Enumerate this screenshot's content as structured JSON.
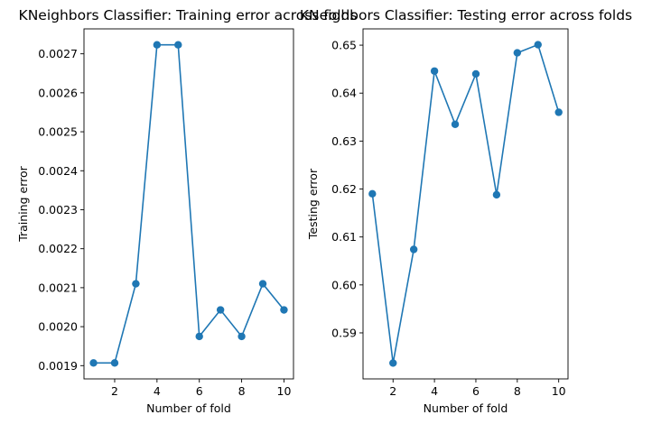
{
  "chart_data": [
    {
      "type": "line",
      "title": "KNeighbors Classifier: Training error across folds",
      "xlabel": "Number of fold",
      "ylabel": "Training error",
      "x": [
        1,
        2,
        3,
        4,
        5,
        6,
        7,
        8,
        9,
        10
      ],
      "series": [
        {
          "values": [
            0.001907,
            0.001907,
            0.00211,
            0.002723,
            0.002723,
            0.001975,
            0.002043,
            0.001975,
            0.00211,
            0.002043
          ]
        }
      ],
      "xticks": [
        2,
        4,
        6,
        8,
        10
      ],
      "yticks": [
        0.0019,
        0.002,
        0.0021,
        0.0022,
        0.0023,
        0.0024,
        0.0025,
        0.0026,
        0.0027
      ],
      "ytick_labels": [
        "0.0019",
        "0.0020",
        "0.0021",
        "0.0022",
        "0.0023",
        "0.0024",
        "0.0025",
        "0.0026",
        "0.0027"
      ],
      "xlim": [
        0.55,
        10.45
      ],
      "ylim": [
        0.001866,
        0.002764
      ],
      "grid": false,
      "color": "#1f77b4",
      "marker": "circle"
    },
    {
      "type": "line",
      "title": "KNeighbors Classifier: Testing error across folds",
      "xlabel": "Number of fold",
      "ylabel": "Testing error",
      "x": [
        1,
        2,
        3,
        4,
        5,
        6,
        7,
        8,
        9,
        10
      ],
      "series": [
        {
          "values": [
            0.619,
            0.5837,
            0.6074,
            0.6446,
            0.6335,
            0.644,
            0.6188,
            0.6484,
            0.6501,
            0.636
          ]
        }
      ],
      "xticks": [
        2,
        4,
        6,
        8,
        10
      ],
      "yticks": [
        0.59,
        0.6,
        0.61,
        0.62,
        0.63,
        0.64,
        0.65
      ],
      "ytick_labels": [
        "0.59",
        "0.60",
        "0.61",
        "0.62",
        "0.63",
        "0.64",
        "0.65"
      ],
      "xlim": [
        0.55,
        10.45
      ],
      "ylim": [
        0.5804,
        0.6534
      ],
      "grid": false,
      "color": "#1f77b4",
      "marker": "circle"
    }
  ]
}
